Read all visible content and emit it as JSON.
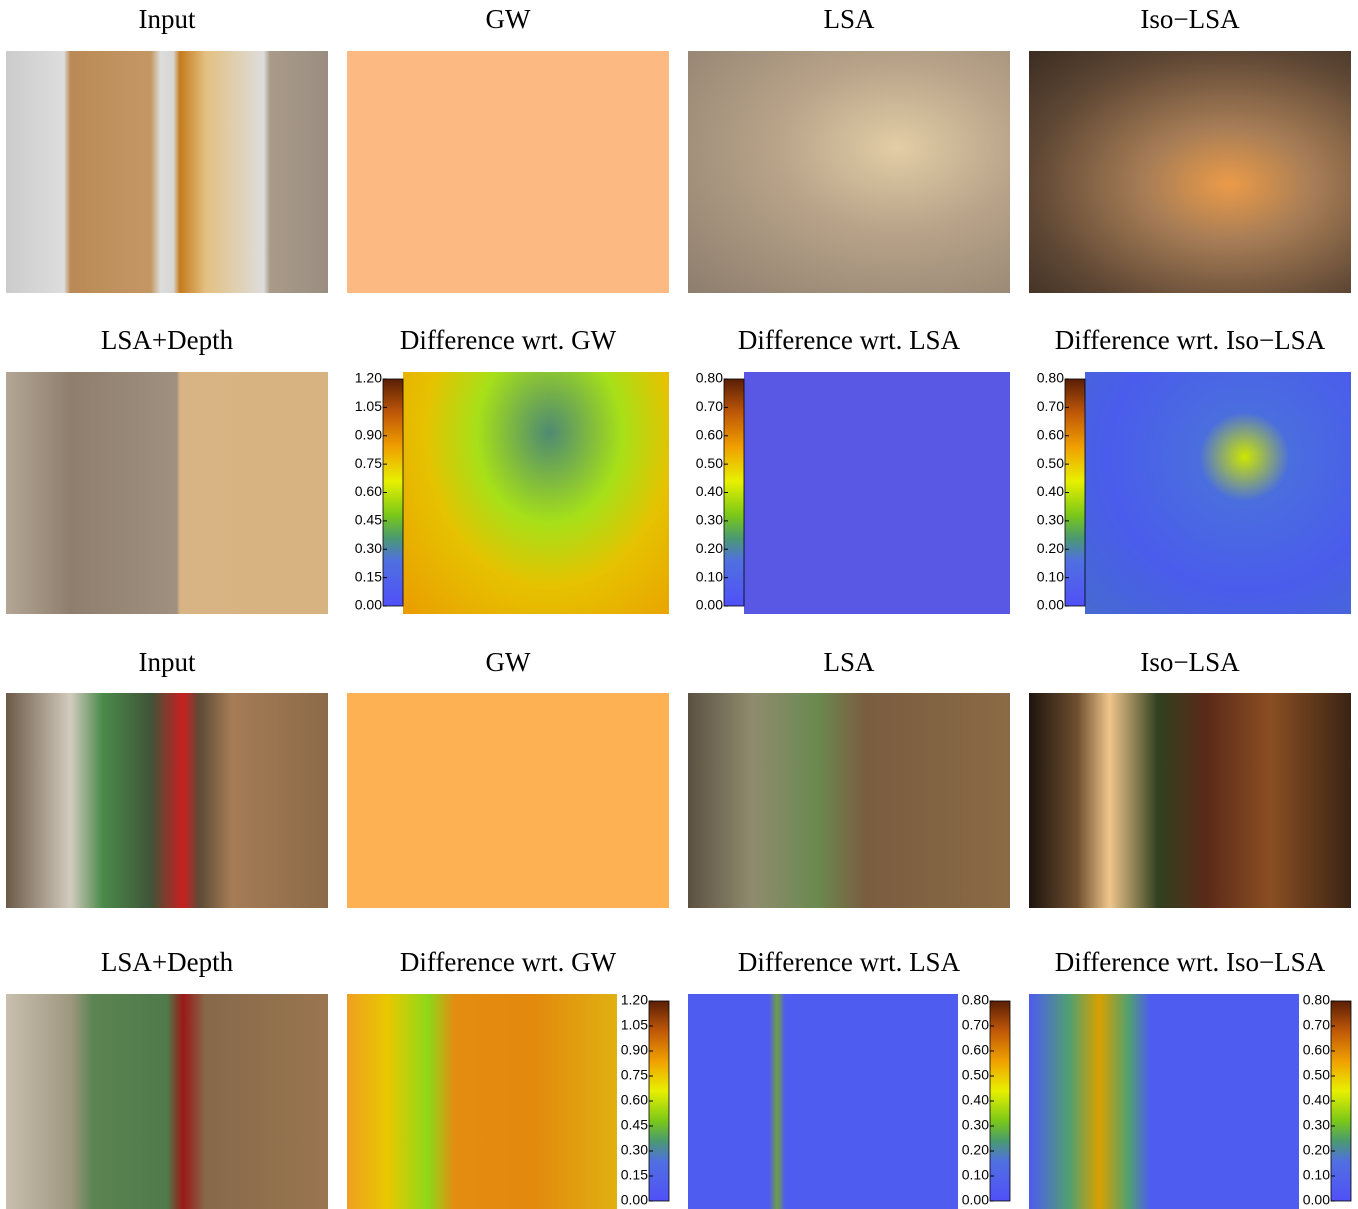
{
  "rows": [
    {
      "panels": [
        {
          "title": "Input"
        },
        {
          "title": "GW"
        },
        {
          "title": "LSA"
        },
        {
          "title": "Iso−LSA"
        }
      ]
    },
    {
      "panels": [
        {
          "title": "LSA+Depth"
        },
        {
          "title": "Difference wrt. GW",
          "colorbar": {
            "lim": [
              0,
              1.2
            ],
            "ticks": [
              {
                "value": 0,
                "label": "0.00"
              },
              {
                "value": 0.15,
                "label": "0.15"
              },
              {
                "value": 0.3,
                "label": "0.30"
              },
              {
                "value": 0.45,
                "label": "0.45"
              },
              {
                "value": 0.6,
                "label": "0.60"
              },
              {
                "value": 0.75,
                "label": "0.75"
              },
              {
                "value": 0.9,
                "label": "0.90"
              },
              {
                "value": 1.05,
                "label": "1.05"
              },
              {
                "value": 1.2,
                "label": "1.20"
              }
            ]
          }
        },
        {
          "title": "Difference wrt. LSA",
          "colorbar": {
            "lim": [
              0,
              0.8
            ],
            "ticks": [
              {
                "value": 0,
                "label": "0.00"
              },
              {
                "value": 0.1,
                "label": "0.10"
              },
              {
                "value": 0.2,
                "label": "0.20"
              },
              {
                "value": 0.3,
                "label": "0.30"
              },
              {
                "value": 0.4,
                "label": "0.40"
              },
              {
                "value": 0.5,
                "label": "0.50"
              },
              {
                "value": 0.6,
                "label": "0.60"
              },
              {
                "value": 0.7,
                "label": "0.70"
              },
              {
                "value": 0.8,
                "label": "0.80"
              }
            ]
          }
        },
        {
          "title": "Difference wrt. Iso−LSA",
          "colorbar": {
            "lim": [
              0,
              0.8
            ],
            "ticks": [
              {
                "value": 0,
                "label": "0.00"
              },
              {
                "value": 0.1,
                "label": "0.10"
              },
              {
                "value": 0.2,
                "label": "0.20"
              },
              {
                "value": 0.3,
                "label": "0.30"
              },
              {
                "value": 0.4,
                "label": "0.40"
              },
              {
                "value": 0.5,
                "label": "0.50"
              },
              {
                "value": 0.6,
                "label": "0.60"
              },
              {
                "value": 0.7,
                "label": "0.70"
              },
              {
                "value": 0.8,
                "label": "0.80"
              }
            ]
          }
        }
      ]
    },
    {
      "panels": [
        {
          "title": "Input"
        },
        {
          "title": "GW"
        },
        {
          "title": "LSA"
        },
        {
          "title": "Iso−LSA"
        }
      ]
    },
    {
      "panels": [
        {
          "title": "LSA+Depth"
        },
        {
          "title": "Difference wrt. GW",
          "colorbar": {
            "lim": [
              0,
              1.2
            ],
            "ticks": [
              {
                "value": 0,
                "label": "0.00"
              },
              {
                "value": 0.15,
                "label": "0.15"
              },
              {
                "value": 0.3,
                "label": "0.30"
              },
              {
                "value": 0.45,
                "label": "0.45"
              },
              {
                "value": 0.6,
                "label": "0.60"
              },
              {
                "value": 0.75,
                "label": "0.75"
              },
              {
                "value": 0.9,
                "label": "0.90"
              },
              {
                "value": 1.05,
                "label": "1.05"
              },
              {
                "value": 1.2,
                "label": "1.20"
              }
            ]
          }
        },
        {
          "title": "Difference wrt. LSA",
          "colorbar": {
            "lim": [
              0,
              0.8
            ],
            "ticks": [
              {
                "value": 0,
                "label": "0.00"
              },
              {
                "value": 0.1,
                "label": "0.10"
              },
              {
                "value": 0.2,
                "label": "0.20"
              },
              {
                "value": 0.3,
                "label": "0.30"
              },
              {
                "value": 0.4,
                "label": "0.40"
              },
              {
                "value": 0.5,
                "label": "0.50"
              },
              {
                "value": 0.6,
                "label": "0.60"
              },
              {
                "value": 0.7,
                "label": "0.70"
              },
              {
                "value": 0.8,
                "label": "0.80"
              }
            ]
          }
        },
        {
          "title": "Difference wrt. Iso−LSA",
          "colorbar": {
            "lim": [
              0,
              0.8
            ],
            "ticks": [
              {
                "value": 0,
                "label": "0.00"
              },
              {
                "value": 0.1,
                "label": "0.10"
              },
              {
                "value": 0.2,
                "label": "0.20"
              },
              {
                "value": 0.3,
                "label": "0.30"
              },
              {
                "value": 0.4,
                "label": "0.40"
              },
              {
                "value": 0.5,
                "label": "0.50"
              },
              {
                "value": 0.6,
                "label": "0.60"
              },
              {
                "value": 0.7,
                "label": "0.70"
              },
              {
                "value": 0.8,
                "label": "0.80"
              }
            ]
          }
        }
      ]
    }
  ]
}
